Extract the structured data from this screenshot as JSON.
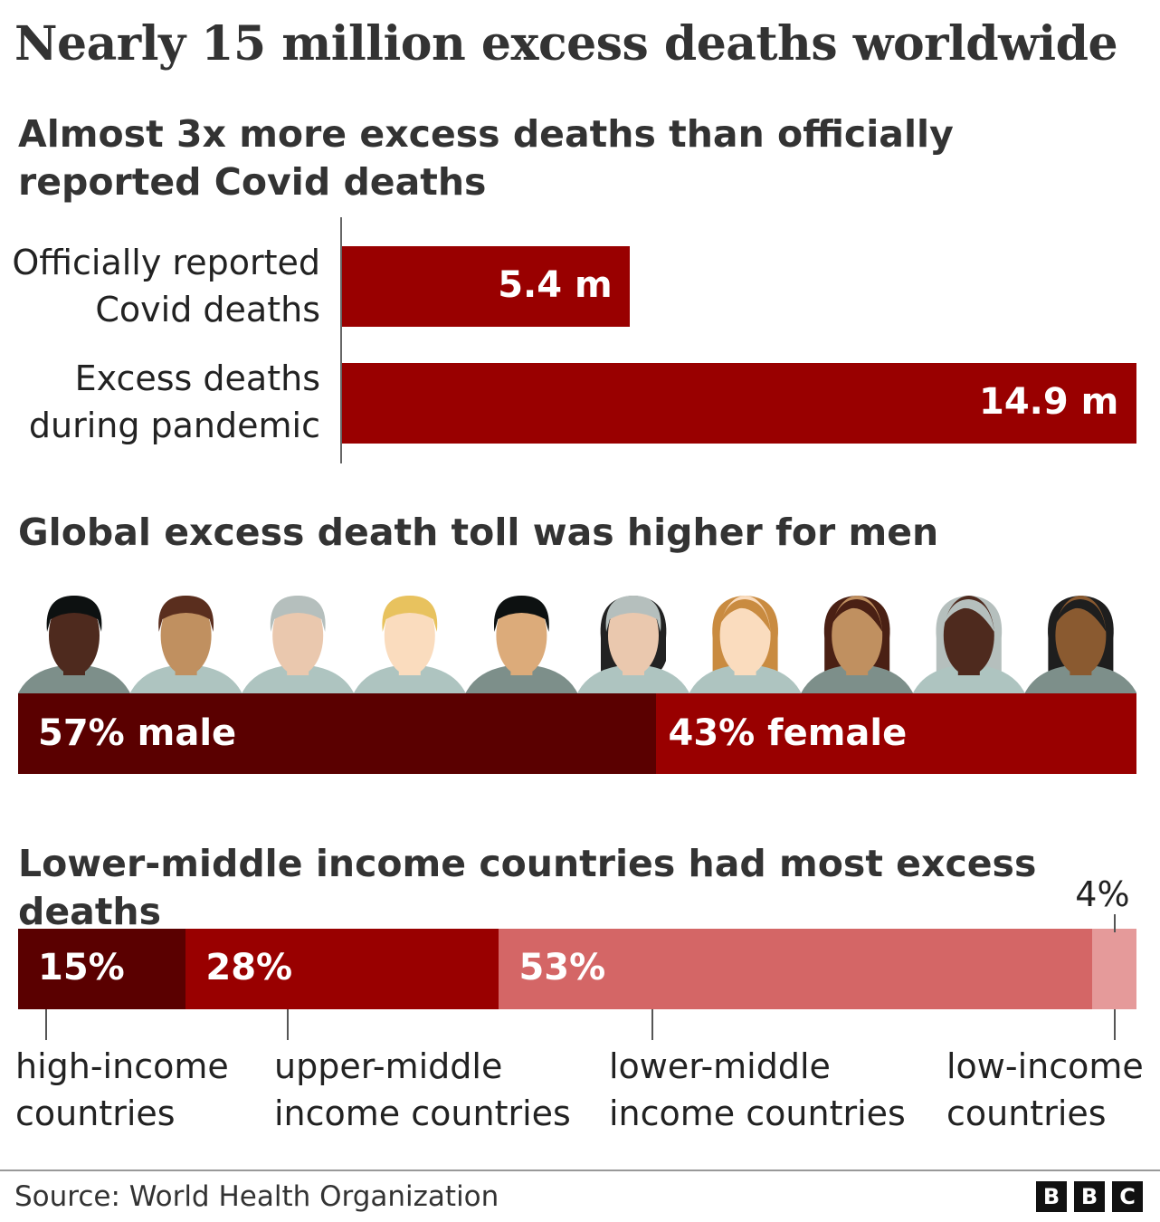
{
  "title": "Nearly 15 million excess deaths worldwide",
  "footer": {
    "source": "Source: World Health Organization",
    "logo": "BBC"
  },
  "colors": {
    "dark_red": "#5a0000",
    "red": "#990000",
    "salmon": "#d46666",
    "pink": "#e59a9a"
  },
  "chart_data": [
    {
      "type": "bar",
      "orientation": "horizontal",
      "title": "Almost 3x more excess deaths than officially reported Covid deaths",
      "categories": [
        "Officially reported Covid deaths",
        "Excess deaths during pandemic"
      ],
      "category_lines": [
        [
          "Officially reported",
          "Covid deaths"
        ],
        [
          "Excess deaths",
          "during pandemic"
        ]
      ],
      "values": [
        5.4,
        14.9
      ],
      "labels": [
        "5.4 m",
        "14.9 m"
      ],
      "unit": "million",
      "xlim": [
        0,
        14.9
      ]
    },
    {
      "type": "bar",
      "stacked": true,
      "title": "Global excess death toll was higher for men",
      "categories": [
        "male",
        "female"
      ],
      "values": [
        57,
        43
      ],
      "labels": [
        "57% male",
        "43% female"
      ],
      "unit": "%"
    },
    {
      "type": "bar",
      "stacked": true,
      "title": "Lower-middle income countries had most excess deaths",
      "categories": [
        "high-income countries",
        "upper-middle income countries",
        "lower-middle income countries",
        "low-income countries"
      ],
      "category_lines": [
        [
          "high-income",
          "countries"
        ],
        [
          "upper-middle",
          "income countries"
        ],
        [
          "lower-middle",
          "income countries"
        ],
        [
          "low-income",
          "countries"
        ]
      ],
      "values": [
        15,
        28,
        53,
        4
      ],
      "labels": [
        "15%",
        "28%",
        "53%",
        "4%"
      ],
      "unit": "%"
    }
  ]
}
